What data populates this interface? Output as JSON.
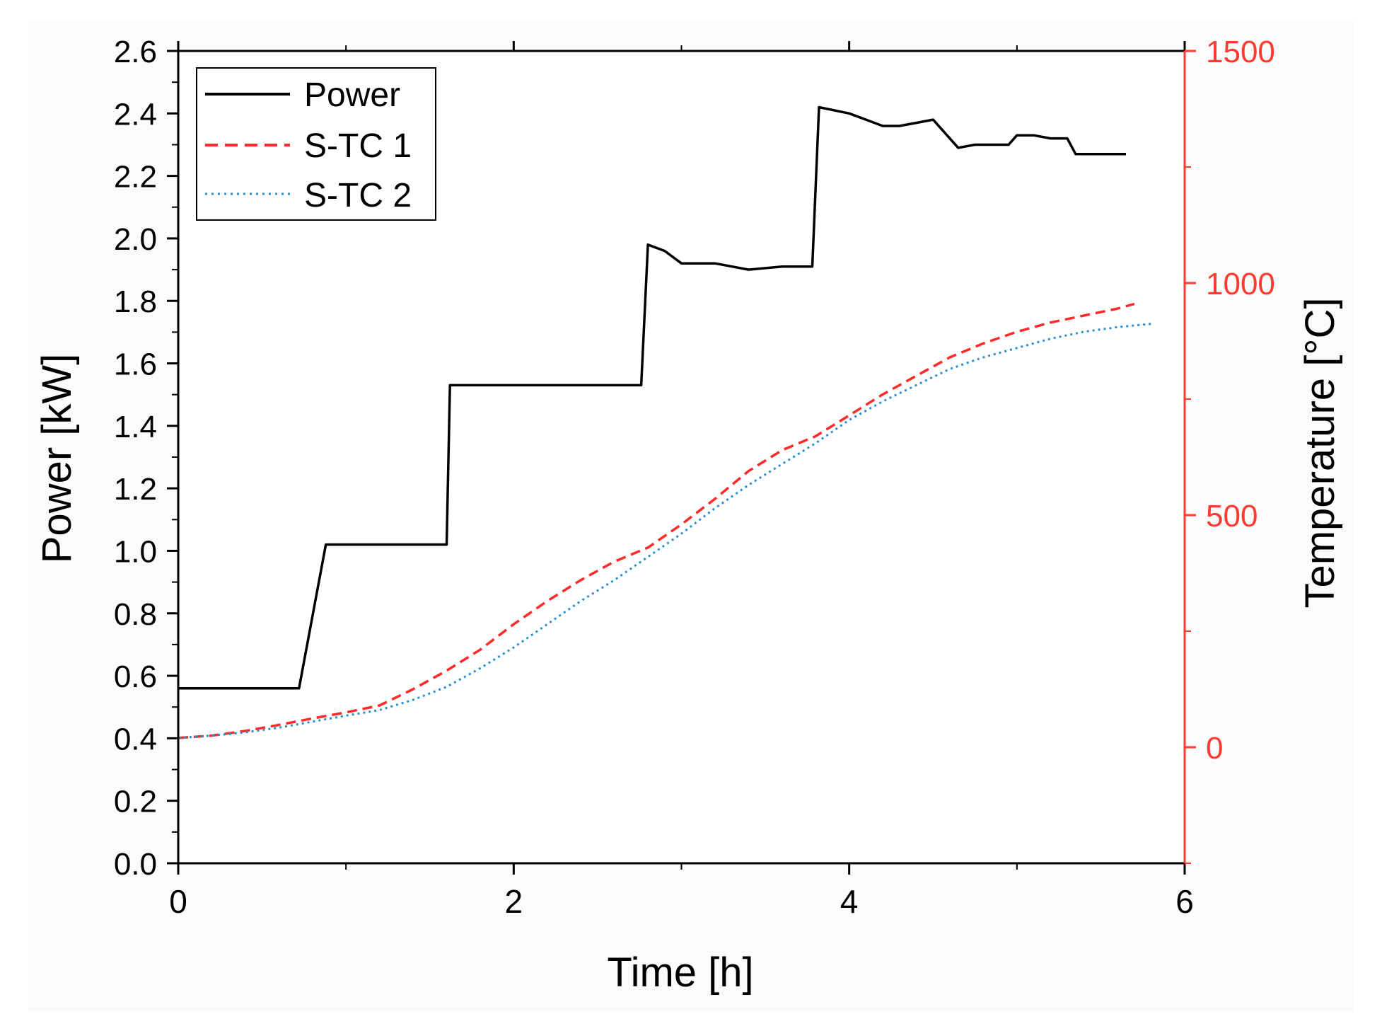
{
  "chart_data": {
    "type": "line",
    "title": "",
    "xlabel": "Time [h]",
    "ylabel_left": "Power [kW]",
    "ylabel_right": "Temperature [°C]",
    "xlim": [
      0,
      6
    ],
    "ylim_left": [
      0,
      2.6
    ],
    "ylim_right": [
      -250,
      1500
    ],
    "x_ticks": [
      0,
      2,
      4,
      6
    ],
    "x_tick_labels": [
      "0",
      "2",
      "4",
      "6"
    ],
    "y_left_ticks": [
      0,
      0.2,
      0.4,
      0.6,
      0.8,
      1.0,
      1.2,
      1.4,
      1.6,
      1.8,
      2.0,
      2.2,
      2.4,
      2.6
    ],
    "y_left_tick_labels": [
      "0.0",
      "0.2",
      "0.4",
      "0.6",
      "0.8",
      "1.0",
      "1.2",
      "1.4",
      "1.6",
      "1.8",
      "2.0",
      "2.2",
      "2.4",
      "2.6"
    ],
    "y_right_ticks": [
      0,
      500,
      1000,
      1500
    ],
    "y_right_tick_labels": [
      "0",
      "500",
      "1000",
      "1500"
    ],
    "grid": false,
    "legend_position": "top-left",
    "colors": {
      "axis_left": "#000000",
      "axis_right": "#ff3b30",
      "power": "#000000",
      "stc1": "#ff2a2a",
      "stc2": "#2a8fcf"
    },
    "series": [
      {
        "name": "Power",
        "axis": "left",
        "style": "solid",
        "x": [
          0.0,
          0.4,
          0.72,
          0.88,
          1.0,
          1.3,
          1.6,
          1.62,
          2.0,
          2.5,
          2.76,
          2.8,
          2.9,
          3.0,
          3.2,
          3.4,
          3.6,
          3.78,
          3.82,
          4.0,
          4.1,
          4.2,
          4.3,
          4.4,
          4.5,
          4.65,
          4.75,
          4.85,
          4.95,
          5.0,
          5.1,
          5.2,
          5.3,
          5.35,
          5.5,
          5.65
        ],
        "values": [
          0.56,
          0.56,
          0.56,
          1.02,
          1.02,
          1.02,
          1.02,
          1.53,
          1.53,
          1.53,
          1.53,
          1.98,
          1.96,
          1.92,
          1.92,
          1.9,
          1.91,
          1.91,
          2.42,
          2.4,
          2.38,
          2.36,
          2.36,
          2.37,
          2.38,
          2.29,
          2.3,
          2.3,
          2.3,
          2.33,
          2.33,
          2.32,
          2.32,
          2.27,
          2.27,
          2.27
        ]
      },
      {
        "name": "S-TC 1",
        "axis": "right",
        "style": "dashed",
        "x": [
          0.0,
          0.2,
          0.4,
          0.6,
          0.8,
          1.0,
          1.2,
          1.4,
          1.6,
          1.8,
          2.0,
          2.2,
          2.4,
          2.6,
          2.8,
          3.0,
          3.2,
          3.4,
          3.6,
          3.8,
          4.0,
          4.2,
          4.4,
          4.6,
          4.8,
          5.0,
          5.2,
          5.4,
          5.6,
          5.7
        ],
        "values": [
          20,
          25,
          35,
          48,
          62,
          75,
          90,
          125,
          165,
          210,
          265,
          315,
          360,
          400,
          430,
          480,
          535,
          595,
          640,
          670,
          715,
          760,
          800,
          840,
          870,
          895,
          915,
          930,
          945,
          955
        ]
      },
      {
        "name": "S-TC 2",
        "axis": "right",
        "style": "dotted",
        "x": [
          0.0,
          0.2,
          0.4,
          0.6,
          0.8,
          1.0,
          1.2,
          1.4,
          1.6,
          1.8,
          2.0,
          2.2,
          2.4,
          2.6,
          2.8,
          3.0,
          3.2,
          3.4,
          3.6,
          3.8,
          4.0,
          4.2,
          4.4,
          4.6,
          4.8,
          5.0,
          5.2,
          5.4,
          5.6,
          5.8
        ],
        "values": [
          20,
          25,
          32,
          42,
          55,
          68,
          80,
          102,
          130,
          170,
          215,
          265,
          315,
          360,
          410,
          460,
          515,
          565,
          610,
          655,
          705,
          745,
          780,
          815,
          840,
          860,
          880,
          895,
          905,
          912
        ]
      }
    ]
  }
}
